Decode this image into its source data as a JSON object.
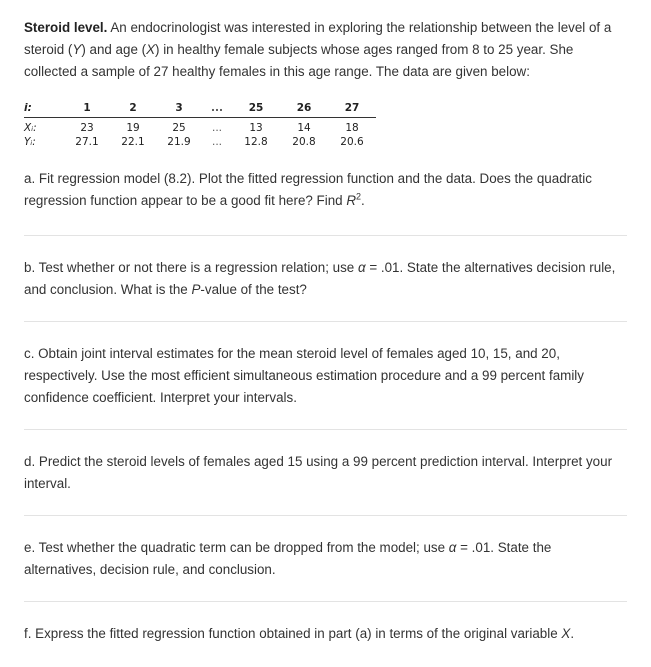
{
  "intro": {
    "title": "Steroid level.",
    "text_1": " An endocrinologist was interested in exploring the relationship between the level of a steroid (",
    "y_var": "Y",
    "text_2": ") and age (",
    "x_var": "X",
    "text_3": ") in healthy female subjects whose ages ranged from 8 to 25 year. She collected a sample of 27 healthy females in this age range. The data are given below:"
  },
  "table": {
    "row_labels": [
      "i:",
      "Xᵢ:",
      "Yᵢ:"
    ],
    "i": [
      "1",
      "2",
      "3",
      "...",
      "25",
      "26",
      "27"
    ],
    "x": [
      "23",
      "19",
      "25",
      "...",
      "13",
      "14",
      "18"
    ],
    "y": [
      "27.1",
      "22.1",
      "21.9",
      "...",
      "12.8",
      "20.8",
      "20.6"
    ]
  },
  "parts": {
    "a": {
      "text": "a. Fit regression model (8.2). Plot the fitted regression function and the data. Does the quadratic regression function appear to be a good fit here? Find ",
      "r": "R",
      "sup": "2",
      "end": "."
    },
    "b": {
      "text_1": "b. Test whether or not there is a regression relation; use ",
      "alpha": "α",
      "text_2": " = .01. State the alternatives decision rule, and conclusion. What is the ",
      "p": "P",
      "text_3": "-value of the test?"
    },
    "c": {
      "text": "c. Obtain joint interval estimates for the mean steroid level of females aged 10, 15, and 20, respectively. Use the most efficient simultaneous estimation procedure and a 99 percent family confidence coefficient. Interpret your intervals."
    },
    "d": {
      "text": "d. Predict the steroid levels of females aged 15 using a 99 percent prediction interval. Interpret your interval."
    },
    "e": {
      "text_1": "e. Test whether the quadratic term can be dropped from the model; use ",
      "alpha": "α",
      "text_2": " = .01. State the alternatives, decision rule, and conclusion."
    },
    "f": {
      "text_1": "f. Express the fitted regression function obtained in part (a) in terms of the original variable ",
      "x": "X",
      "end": "."
    }
  }
}
